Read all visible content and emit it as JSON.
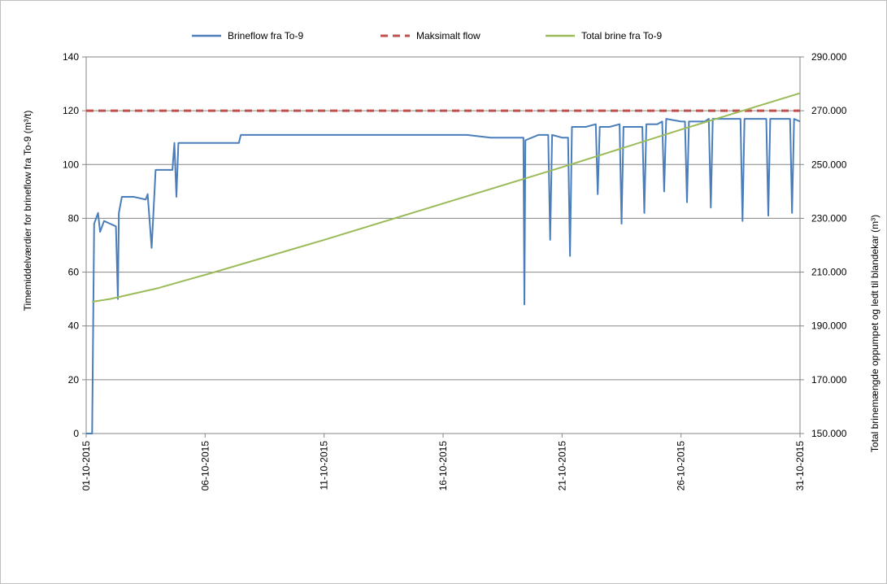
{
  "chart_data": {
    "type": "line",
    "x_unit": "date (dd-mm-yyyy), hourly",
    "xlim": [
      "01-10-2015",
      "31-10-2015"
    ],
    "x_tick_labels": [
      "01-10-2015",
      "06-10-2015",
      "11-10-2015",
      "16-10-2015",
      "21-10-2015",
      "26-10-2015",
      "31-10-2015"
    ],
    "ylabel": "Timemiddelværdier for brineflow fra To-9 (m³/t)",
    "ylim": [
      0,
      140
    ],
    "y_tick_labels": [
      "0",
      "20",
      "40",
      "60",
      "80",
      "100",
      "120",
      "140"
    ],
    "y2label": "Total brinemængde oppumpet og ledt til blandekar (m³)",
    "y2lim": [
      150000,
      290000
    ],
    "y2_tick_labels": [
      "150.000",
      "170.000",
      "190.000",
      "210.000",
      "230.000",
      "250.000",
      "270.000",
      "290.000"
    ],
    "grid": "horizontal major gridlines",
    "legend_position": "top",
    "series": [
      {
        "name": "Brineflow fra To-9",
        "axis": "left",
        "color": "#4a7ebb",
        "points": [
          [
            "01-10-2015",
            0
          ],
          [
            "01-10-2015 06:00",
            0
          ],
          [
            "01-10-2015 08:00",
            78
          ],
          [
            "01-10-2015 12:00",
            82
          ],
          [
            "01-10-2015 14:00",
            75
          ],
          [
            "01-10-2015 18:00",
            79
          ],
          [
            "02-10-2015 00:00",
            78
          ],
          [
            "02-10-2015 06:00",
            77
          ],
          [
            "02-10-2015 08:00",
            50
          ],
          [
            "02-10-2015 09:00",
            82
          ],
          [
            "02-10-2015 12:00",
            88
          ],
          [
            "03-10-2015 00:00",
            88
          ],
          [
            "03-10-2015 12:00",
            87
          ],
          [
            "03-10-2015 14:00",
            89
          ],
          [
            "03-10-2015 18:00",
            69
          ],
          [
            "03-10-2015 22:00",
            98
          ],
          [
            "04-10-2015 12:00",
            98
          ],
          [
            "04-10-2015 15:00",
            98
          ],
          [
            "04-10-2015 17:00",
            108
          ],
          [
            "04-10-2015 19:00",
            88
          ],
          [
            "04-10-2015 21:00",
            108
          ],
          [
            "05-10-2015 12:00",
            108
          ],
          [
            "06-10-2015 00:00",
            108
          ],
          [
            "07-10-2015 00:00",
            108
          ],
          [
            "07-10-2015 10:00",
            108
          ],
          [
            "07-10-2015 12:00",
            111
          ],
          [
            "08-10-2015 00:00",
            111
          ],
          [
            "10-10-2015 00:00",
            111
          ],
          [
            "13-10-2015 00:00",
            111
          ],
          [
            "15-10-2015 00:00",
            111
          ],
          [
            "17-10-2015 00:00",
            111
          ],
          [
            "18-10-2015 00:00",
            110
          ],
          [
            "19-10-2015 00:00",
            110
          ],
          [
            "19-10-2015 09:00",
            110
          ],
          [
            "19-10-2015 10:00",
            48
          ],
          [
            "19-10-2015 11:00",
            109
          ],
          [
            "20-10-2015 00:00",
            111
          ],
          [
            "20-10-2015 10:00",
            111
          ],
          [
            "20-10-2015 12:00",
            72
          ],
          [
            "20-10-2015 14:00",
            111
          ],
          [
            "21-10-2015 00:00",
            110
          ],
          [
            "21-10-2015 06:00",
            110
          ],
          [
            "21-10-2015 08:00",
            66
          ],
          [
            "21-10-2015 10:00",
            114
          ],
          [
            "22-10-2015 00:00",
            114
          ],
          [
            "22-10-2015 10:00",
            115
          ],
          [
            "22-10-2015 12:00",
            89
          ],
          [
            "22-10-2015 14:00",
            114
          ],
          [
            "23-10-2015 00:00",
            114
          ],
          [
            "23-10-2015 10:00",
            115
          ],
          [
            "23-10-2015 12:00",
            78
          ],
          [
            "23-10-2015 14:00",
            114
          ],
          [
            "24-10-2015 00:00",
            114
          ],
          [
            "24-10-2015 09:00",
            114
          ],
          [
            "24-10-2015 11:00",
            82
          ],
          [
            "24-10-2015 13:00",
            115
          ],
          [
            "25-10-2015 00:00",
            115
          ],
          [
            "25-10-2015 05:00",
            116
          ],
          [
            "25-10-2015 07:00",
            90
          ],
          [
            "25-10-2015 09:00",
            117
          ],
          [
            "26-10-2015 00:00",
            116
          ],
          [
            "26-10-2015 04:00",
            116
          ],
          [
            "26-10-2015 06:00",
            86
          ],
          [
            "26-10-2015 08:00",
            116
          ],
          [
            "27-10-2015 00:00",
            116
          ],
          [
            "27-10-2015 04:00",
            117
          ],
          [
            "27-10-2015 06:00",
            84
          ],
          [
            "27-10-2015 08:00",
            117
          ],
          [
            "28-10-2015 00:00",
            117
          ],
          [
            "28-10-2015 12:00",
            117
          ],
          [
            "28-10-2015 14:00",
            79
          ],
          [
            "28-10-2015 16:00",
            117
          ],
          [
            "29-10-2015 00:00",
            117
          ],
          [
            "29-10-2015 14:00",
            117
          ],
          [
            "29-10-2015 16:00",
            81
          ],
          [
            "29-10-2015 18:00",
            117
          ],
          [
            "30-10-2015 00:00",
            117
          ],
          [
            "30-10-2015 14:00",
            117
          ],
          [
            "30-10-2015 16:00",
            82
          ],
          [
            "30-10-2015 18:00",
            117
          ],
          [
            "31-10-2015 00:00",
            116
          ]
        ]
      },
      {
        "name": "Maksimalt flow",
        "axis": "left",
        "color": "#c0504d",
        "dashed": true,
        "points": [
          [
            "01-10-2015",
            120
          ],
          [
            "31-10-2015",
            120
          ]
        ]
      },
      {
        "name": "Total brine fra To-9",
        "axis": "right",
        "color": "#9bbb59",
        "points": [
          [
            "01-10-2015 06:00",
            199000
          ],
          [
            "02-10-2015 00:00",
            200000
          ],
          [
            "03-10-2015 00:00",
            202000
          ],
          [
            "04-10-2015 00:00",
            204000
          ],
          [
            "05-10-2015 00:00",
            206500
          ],
          [
            "06-10-2015 00:00",
            209000
          ],
          [
            "11-10-2015 00:00",
            222000
          ],
          [
            "16-10-2015 00:00",
            235500
          ],
          [
            "21-10-2015 00:00",
            249000
          ],
          [
            "26-10-2015 00:00",
            263000
          ],
          [
            "31-10-2015 00:00",
            276500
          ]
        ]
      }
    ]
  }
}
